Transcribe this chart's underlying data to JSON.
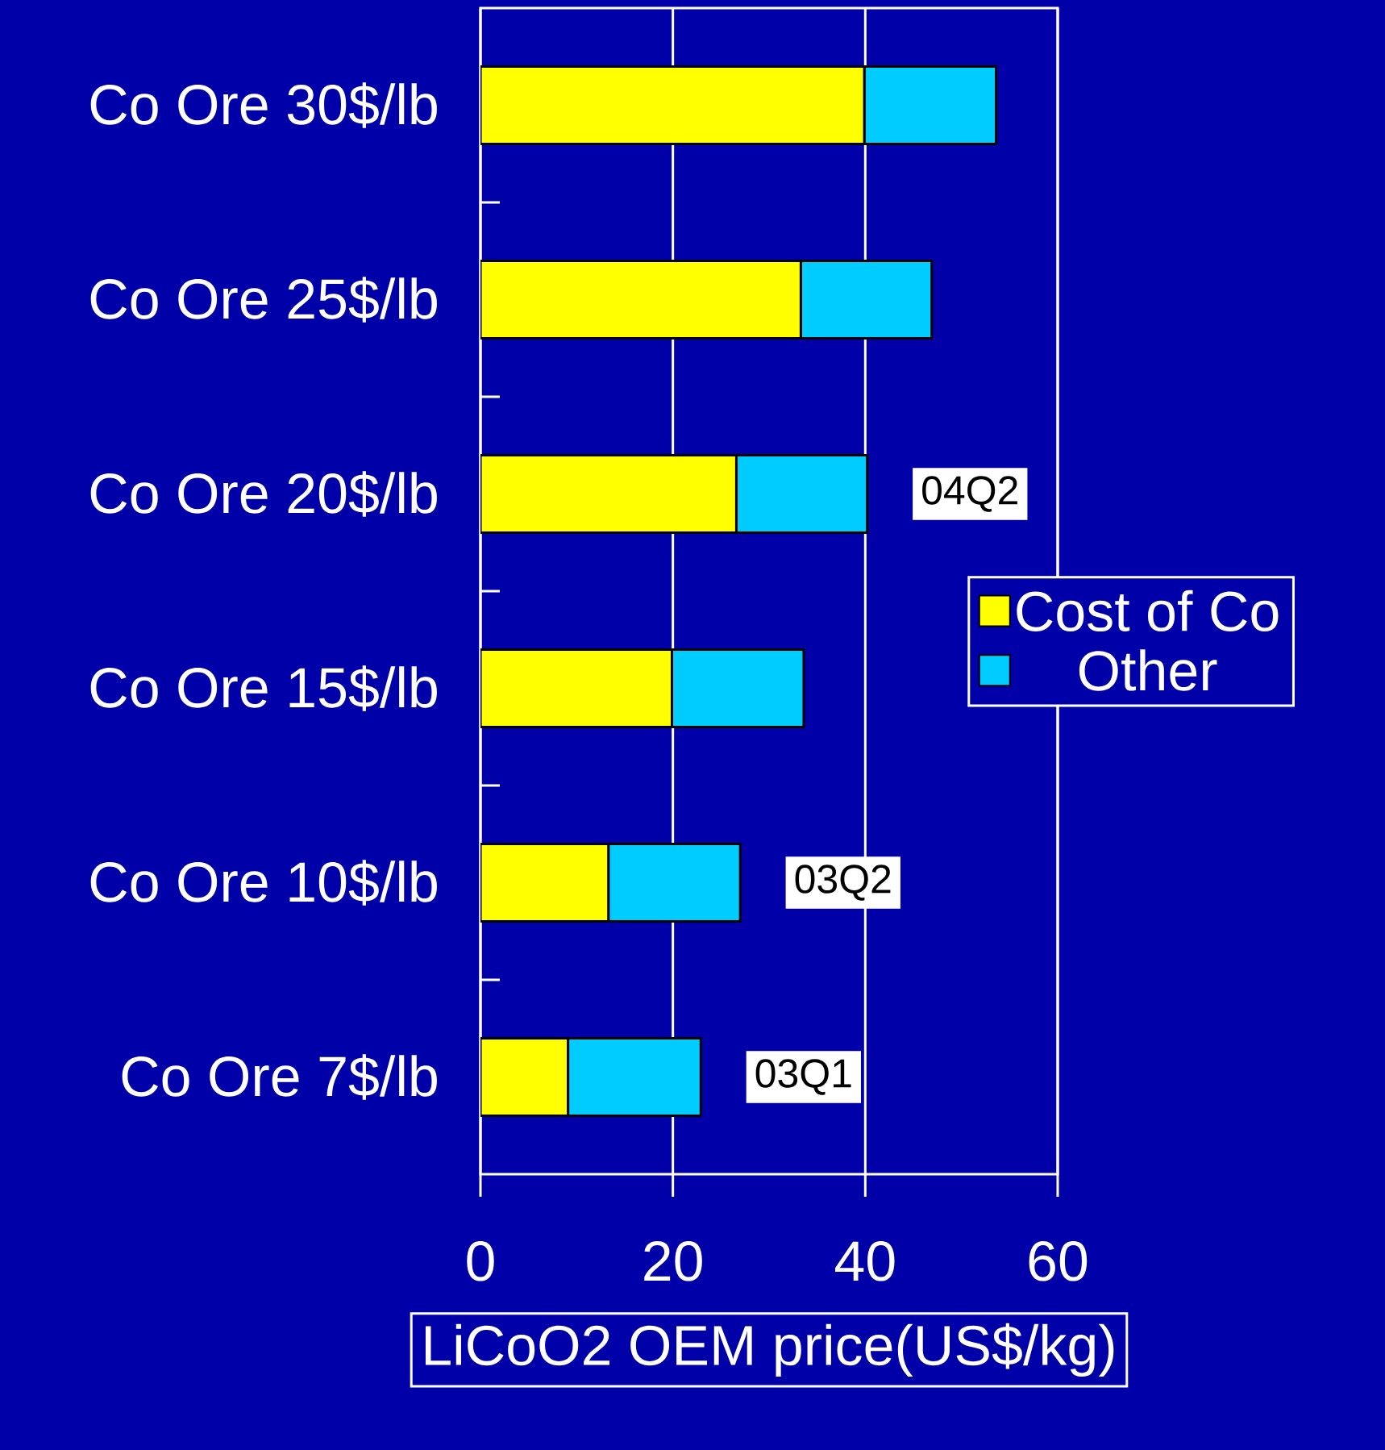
{
  "chart_data": {
    "type": "bar",
    "orientation": "horizontal",
    "stacked": true,
    "categories": [
      "Co Ore 30$/lb",
      "Co Ore 25$/lb",
      "Co Ore 20$/lb",
      "Co Ore 15$/lb",
      "Co Ore 10$/lb",
      "Co Ore 7$/lb"
    ],
    "series": [
      {
        "name": "Cost of Co",
        "color": "#ffff00",
        "values": [
          39.9,
          33.3,
          26.6,
          19.9,
          13.3,
          9.1
        ]
      },
      {
        "name": "Other",
        "color": "#00ccff",
        "values": [
          13.7,
          13.6,
          13.6,
          13.7,
          13.7,
          13.8
        ]
      }
    ],
    "xlabel": "LiCoO2 OEM price(US$/kg)",
    "xlim": [
      0,
      60
    ],
    "xticks": [
      0,
      20,
      40,
      60
    ],
    "grid": "x",
    "legend": "right",
    "annotations": [
      {
        "text": "04Q2",
        "x": 40.2,
        "y": "Co Ore 20$/lb"
      },
      {
        "text": "03Q2",
        "x": 27.0,
        "y": "Co Ore 10$/lb"
      },
      {
        "text": "03Q1",
        "x": 22.9,
        "y": "Co Ore 7$/lb"
      }
    ]
  }
}
